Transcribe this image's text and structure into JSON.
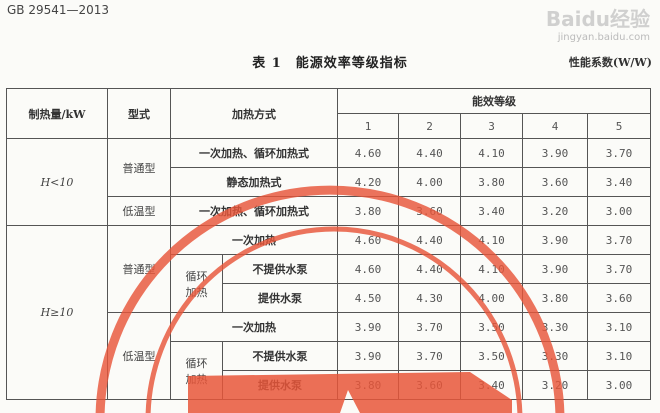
{
  "document": {
    "standard_number": "GB 29541—2013",
    "table_label": "表 1",
    "table_title": "能源效率等级指标",
    "unit": "性能系数(W/W)"
  },
  "table": {
    "headers": {
      "capacity": "制热量/kW",
      "type": "型式",
      "method": "加热方式",
      "grade": "能效等级",
      "levels": [
        "1",
        "2",
        "3",
        "4",
        "5"
      ]
    },
    "groups": {
      "small": "H<10",
      "large": "H≥10",
      "normal": "普通型",
      "low_temp": "低温型",
      "circulating": "循环加热"
    },
    "rows": [
      {
        "method": "一次加热、循环加热式",
        "values": [
          "4.60",
          "4.40",
          "4.10",
          "3.90",
          "3.70"
        ]
      },
      {
        "method": "静态加热式",
        "values": [
          "4.20",
          "4.00",
          "3.80",
          "3.60",
          "3.40"
        ]
      },
      {
        "method": "一次加热、循环加热式",
        "values": [
          "3.80",
          "3.60",
          "3.40",
          "3.20",
          "3.00"
        ]
      },
      {
        "method": "一次加热",
        "values": [
          "4.60",
          "4.40",
          "4.10",
          "3.90",
          "3.70"
        ]
      },
      {
        "method": "不提供水泵",
        "values": [
          "4.60",
          "4.40",
          "4.10",
          "3.90",
          "3.70"
        ]
      },
      {
        "method": "提供水泵",
        "values": [
          "4.50",
          "4.30",
          "4.00",
          "3.80",
          "3.60"
        ]
      },
      {
        "method": "一次加热",
        "values": [
          "3.90",
          "3.70",
          "3.50",
          "3.30",
          "3.10"
        ]
      },
      {
        "method": "不提供水泵",
        "values": [
          "3.90",
          "3.70",
          "3.50",
          "3.30",
          "3.10"
        ]
      },
      {
        "method": "提供水泵",
        "values": [
          "3.80",
          "3.60",
          "3.40",
          "3.20",
          "3.00"
        ]
      }
    ]
  },
  "watermark": {
    "text": "Baidu经验",
    "sub": "jingyan.baidu.com"
  },
  "colors": {
    "stamp": "#e8563a",
    "border": "#555555"
  }
}
